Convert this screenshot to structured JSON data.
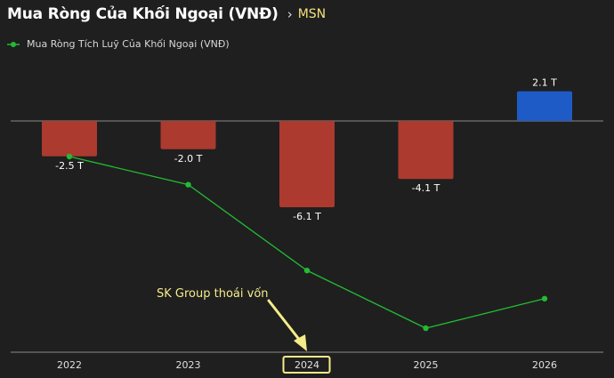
{
  "header": {
    "title": "Mua Ròng Của Khối Ngoại (VNĐ)",
    "source_label": "MSN"
  },
  "legend": {
    "label": "Mua Ròng Tích Luỹ Của Khối Ngoại (VNĐ)"
  },
  "annotation": {
    "text": "SK Group thoái vốn",
    "highlight_category": "2024"
  },
  "colors": {
    "background": "#1f1f1f",
    "negative_bar": "#ac3a2e",
    "positive_bar": "#1f5bc7",
    "line": "#22bb33",
    "annotation": "#f5ec8a",
    "axis": "#8a8a8a"
  },
  "chart_data": {
    "type": "bar",
    "categories": [
      "2022",
      "2023",
      "2024",
      "2025",
      "2026"
    ],
    "series": [
      {
        "type": "bar",
        "values": [
          -2.5,
          -2.0,
          -6.1,
          -4.1,
          2.1
        ],
        "labels": [
          "-2.5 T",
          "-2.0 T",
          "-6.1 T",
          "-4.1 T",
          "2.1 T"
        ]
      },
      {
        "type": "line",
        "name": "Mua Ròng Tích Luỹ Của Khối Ngoại (VNĐ)",
        "values": [
          -2.5,
          -4.5,
          -10.6,
          -14.7,
          -12.6
        ]
      }
    ],
    "grid": false,
    "legend_position": "top-left"
  }
}
